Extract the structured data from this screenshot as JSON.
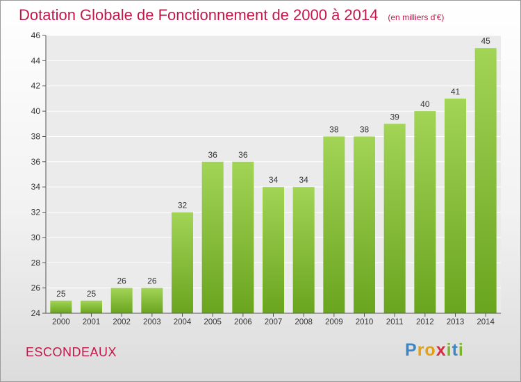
{
  "header": {
    "title": "Dotation Globale de Fonctionnement de 2000 à 2014",
    "unit": "(en milliers d'€)"
  },
  "footer": {
    "commune": "ESCONDEAUX",
    "logo": "Proxiti"
  },
  "colors": {
    "accent": "#c3174a",
    "bar_top": "#a2d456",
    "bar_bottom": "#6aa51f"
  },
  "chart_data": {
    "type": "bar",
    "title": "Dotation Globale de Fonctionnement de 2000 à 2014",
    "subtitle": "(en milliers d'€)",
    "xlabel": "",
    "ylabel": "",
    "categories": [
      "2000",
      "2001",
      "2002",
      "2003",
      "2004",
      "2005",
      "2006",
      "2007",
      "2008",
      "2009",
      "2010",
      "2011",
      "2012",
      "2013",
      "2014"
    ],
    "values": [
      25,
      25,
      26,
      26,
      32,
      36,
      36,
      34,
      34,
      38,
      38,
      39,
      40,
      41,
      45
    ],
    "ylim": [
      24,
      46
    ],
    "yticks": [
      24,
      26,
      28,
      30,
      32,
      34,
      36,
      38,
      40,
      42,
      44,
      46
    ],
    "grid": true,
    "data_labels": true,
    "legend": "none"
  }
}
